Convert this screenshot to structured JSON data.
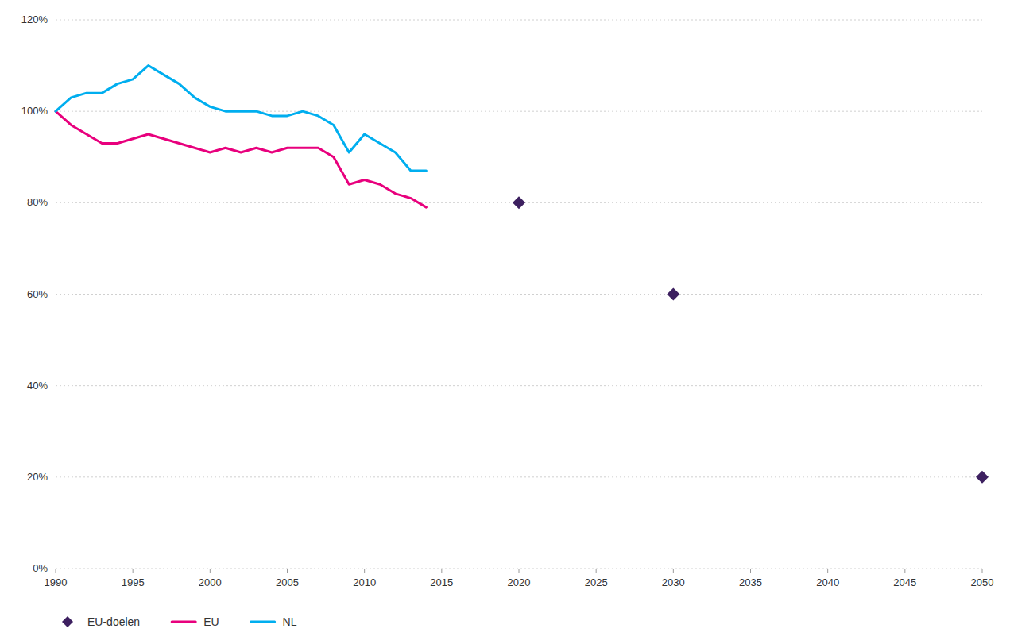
{
  "chart_data": {
    "type": "line",
    "xlim": [
      1990,
      2050
    ],
    "xticks": [
      1990,
      1995,
      2000,
      2005,
      2010,
      2015,
      2020,
      2025,
      2030,
      2035,
      2040,
      2045,
      2050
    ],
    "ylim": [
      0,
      120
    ],
    "yticks": [
      {
        "value": 0,
        "label": "0%"
      },
      {
        "value": 20,
        "label": "20%"
      },
      {
        "value": 40,
        "label": "40%"
      },
      {
        "value": 60,
        "label": "60%"
      },
      {
        "value": 80,
        "label": "80%"
      },
      {
        "value": 100,
        "label": "100%"
      },
      {
        "value": 120,
        "label": "120%"
      }
    ],
    "grid": true,
    "legend": "bottom",
    "series": [
      {
        "name": "EU-doelen",
        "type": "scatter",
        "marker": "diamond",
        "line_style": "none",
        "color": "#3d2060",
        "x": [
          2020,
          2030,
          2050
        ],
        "values": [
          80,
          60,
          20
        ]
      },
      {
        "name": "EU",
        "type": "line",
        "color": "#e8007d",
        "x": [
          1990,
          1991,
          1992,
          1993,
          1994,
          1995,
          1996,
          1997,
          1998,
          1999,
          2000,
          2001,
          2002,
          2003,
          2004,
          2005,
          2006,
          2007,
          2008,
          2009,
          2010,
          2011,
          2012,
          2013,
          2014
        ],
        "values": [
          100,
          97,
          95,
          93,
          93,
          94,
          95,
          94,
          93,
          92,
          91,
          92,
          91,
          92,
          91,
          92,
          92,
          92,
          90,
          84,
          85,
          84,
          82,
          81,
          79
        ]
      },
      {
        "name": "NL",
        "type": "line",
        "color": "#00aeef",
        "x": [
          1990,
          1991,
          1992,
          1993,
          1994,
          1995,
          1996,
          1997,
          1998,
          1999,
          2000,
          2001,
          2002,
          2003,
          2004,
          2005,
          2006,
          2007,
          2008,
          2009,
          2010,
          2011,
          2012,
          2013,
          2014
        ],
        "values": [
          100,
          103,
          104,
          104,
          106,
          107,
          110,
          108,
          106,
          103,
          101,
          100,
          100,
          100,
          99,
          99,
          100,
          99,
          97,
          91,
          95,
          93,
          91,
          87,
          87
        ]
      }
    ]
  }
}
